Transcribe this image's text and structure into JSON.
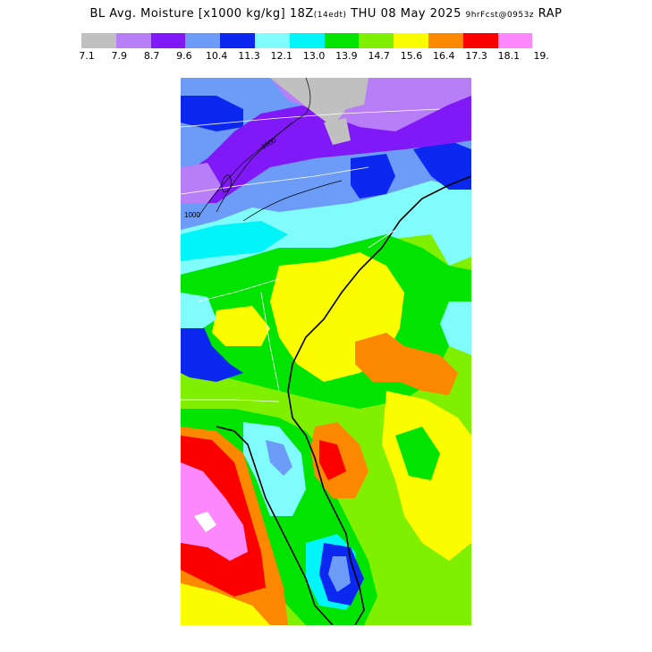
{
  "title": {
    "main": "BL Avg. Moisture [x1000 kg/kg] 18Z",
    "tz": "(14edt)",
    "date": "THU 08 May 2025",
    "fcst": "9hrFcst@0953z",
    "model": "RAP"
  },
  "legend": {
    "ticks": [
      "7.1",
      "7.9",
      "8.7",
      "9.6",
      "10.4",
      "11.3",
      "12.1",
      "13.0",
      "13.9",
      "14.7",
      "15.6",
      "16.4",
      "17.3",
      "18.1",
      "19."
    ],
    "colors": [
      "#c0c0c0",
      "#b87ef8",
      "#8018f8",
      "#6c9cf8",
      "#0c28f0",
      "#80fcfc",
      "#00f4f8",
      "#00e400",
      "#80f000",
      "#fcfc00",
      "#fc8800",
      "#fc0000",
      "#fc88fc"
    ]
  },
  "contour_labels": [
    "1000",
    "1000"
  ]
}
